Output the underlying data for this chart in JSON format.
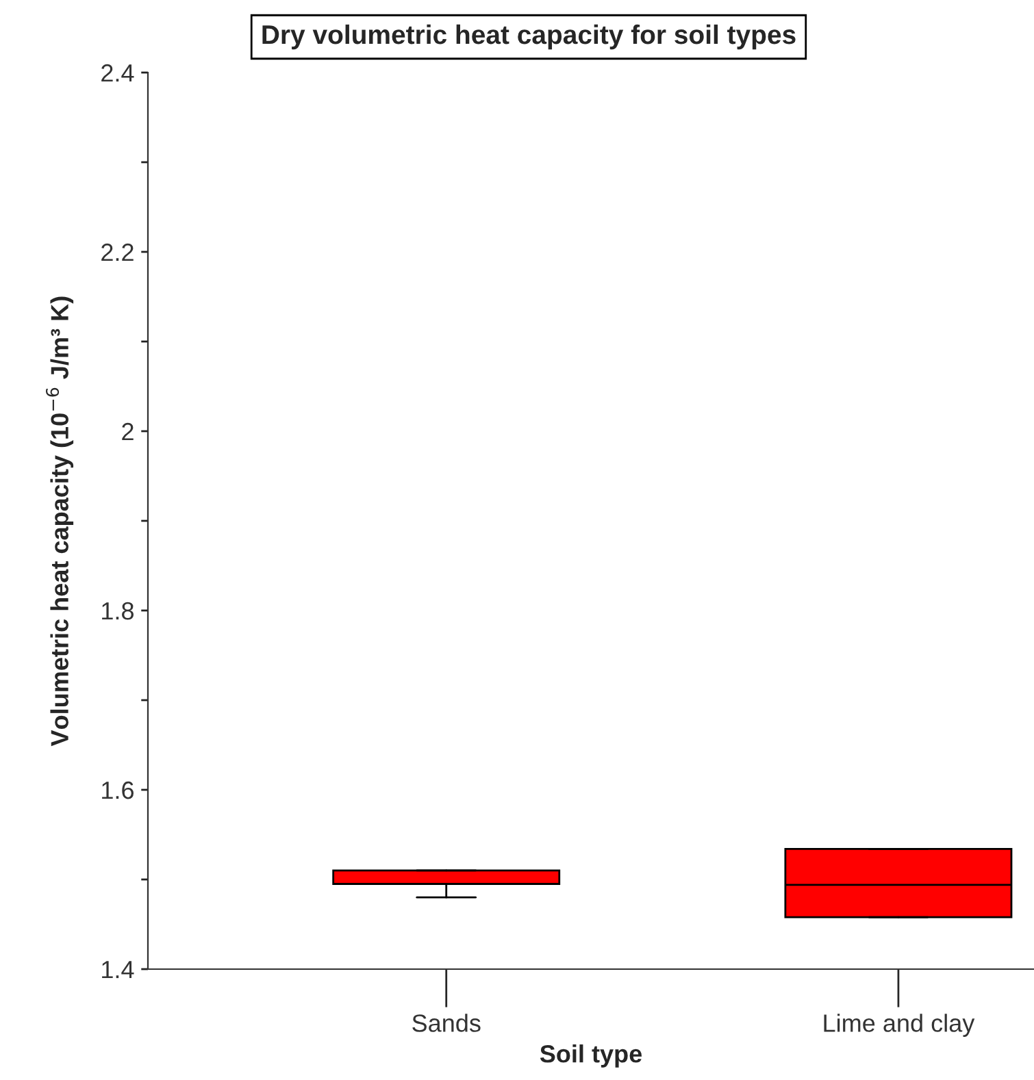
{
  "chart_data": {
    "type": "box",
    "title": "Dry volumetric heat capacity for soil types",
    "xlabel": "Soil type",
    "ylabel": "Volumetric heat capacity (10$^{−6}$ J/m³ K)",
    "categories": [
      "Sands",
      "Lime and clay"
    ],
    "boxes": [
      {
        "low": 1.48,
        "q1": 1.495,
        "median": 1.495,
        "q3": 1.51,
        "high": 1.51
      },
      {
        "low": 1.458,
        "q1": 1.458,
        "median": 1.494,
        "q3": 1.534,
        "high": 1.534
      }
    ],
    "color": "#ff0000",
    "ylim": [
      1.4,
      2.4
    ],
    "yticks": [
      1.4,
      {
        "value": 1.5,
        "label": null
      },
      1.6,
      {
        "value": 1.7,
        "label": null
      },
      1.8,
      {
        "value": 1.9,
        "label": null
      },
      2,
      {
        "value": 2.1,
        "label": null
      },
      2.2,
      {
        "value": 2.3,
        "label": null
      },
      2.4
    ],
    "grid": false,
    "legend": false
  }
}
